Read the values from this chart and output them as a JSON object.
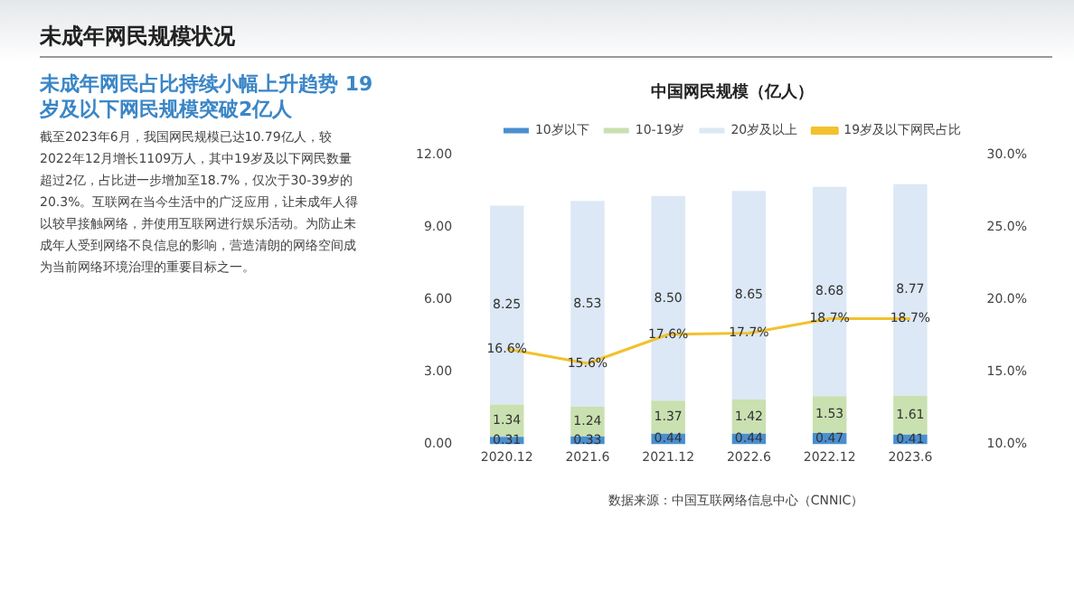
{
  "chart_data": {
    "type": "bar",
    "title": "中国网民规模（亿人）",
    "categories": [
      "2020.12",
      "2021.6",
      "2021.12",
      "2022.6",
      "2022.12",
      "2023.6"
    ],
    "stacked": true,
    "series": [
      {
        "name": "10岁以下",
        "color": "#4a8fd0",
        "values": [
          0.31,
          0.33,
          0.44,
          0.44,
          0.47,
          0.41
        ],
        "value_labels": [
          "0.31",
          "0.33",
          "0.44",
          "0.44",
          "0.47",
          "0.41"
        ]
      },
      {
        "name": "10-19岁",
        "color": "#c9e0b0",
        "values": [
          1.34,
          1.24,
          1.37,
          1.42,
          1.53,
          1.61
        ],
        "value_labels": [
          "1.34",
          "1.24",
          "1.37",
          "1.42",
          "1.53",
          "1.61"
        ]
      },
      {
        "name": "20岁及以上",
        "color": "#dce8f5",
        "values": [
          8.25,
          8.53,
          8.5,
          8.65,
          8.68,
          8.77
        ],
        "value_labels": [
          "8.25",
          "8.53",
          "8.50",
          "8.65",
          "8.68",
          "8.77"
        ]
      },
      {
        "name": "19岁及以下网民占比",
        "type": "line",
        "axis": "y2",
        "color": "#f2c12e",
        "values": [
          16.6,
          15.6,
          17.6,
          17.7,
          18.7,
          18.7
        ],
        "value_labels": [
          "16.6%",
          "15.6%",
          "17.6%",
          "17.7%",
          "18.7%",
          "18.7%"
        ]
      }
    ],
    "ylim": [
      0,
      12
    ],
    "yticks": [
      {
        "value": 0,
        "label": "0.00"
      },
      {
        "value": 3,
        "label": "3.00"
      },
      {
        "value": 6,
        "label": "6.00"
      },
      {
        "value": 9,
        "label": "9.00"
      },
      {
        "value": 12,
        "label": "12.00"
      }
    ],
    "y2lim": [
      10,
      30
    ],
    "y2ticks": [
      {
        "value": 10,
        "label": "10.0%"
      },
      {
        "value": 15,
        "label": "15.0%"
      },
      {
        "value": 20,
        "label": "20.0%"
      },
      {
        "value": 25,
        "label": "25.0%"
      },
      {
        "value": 30,
        "label": "30.0%"
      }
    ],
    "grid": false,
    "legend": "top",
    "line_style": "solid",
    "annotations": [
      "未成年网民规模状况",
      "未成年网民占比持续小幅上升趋势 19岁及以下网民规模突破2亿人",
      "截至2023年6月，我国网民规模已达10.79亿人，较2022年12月增长1109万人，其中19岁及以下网民数量超过2亿，占比进一步增加至18.7%，仅次于30-39岁的20.3%。互联网在当今生活中的广泛应用，让未成年人得以较早接触网络，并使用互联网进行娱乐活动。为防止未成年人受到网络不良信息的影响，营造清朗的网络空间成为当前网络环境治理的重要目标之一。",
      "数据来源：中国互联网络信息中心（CNNIC）"
    ]
  }
}
